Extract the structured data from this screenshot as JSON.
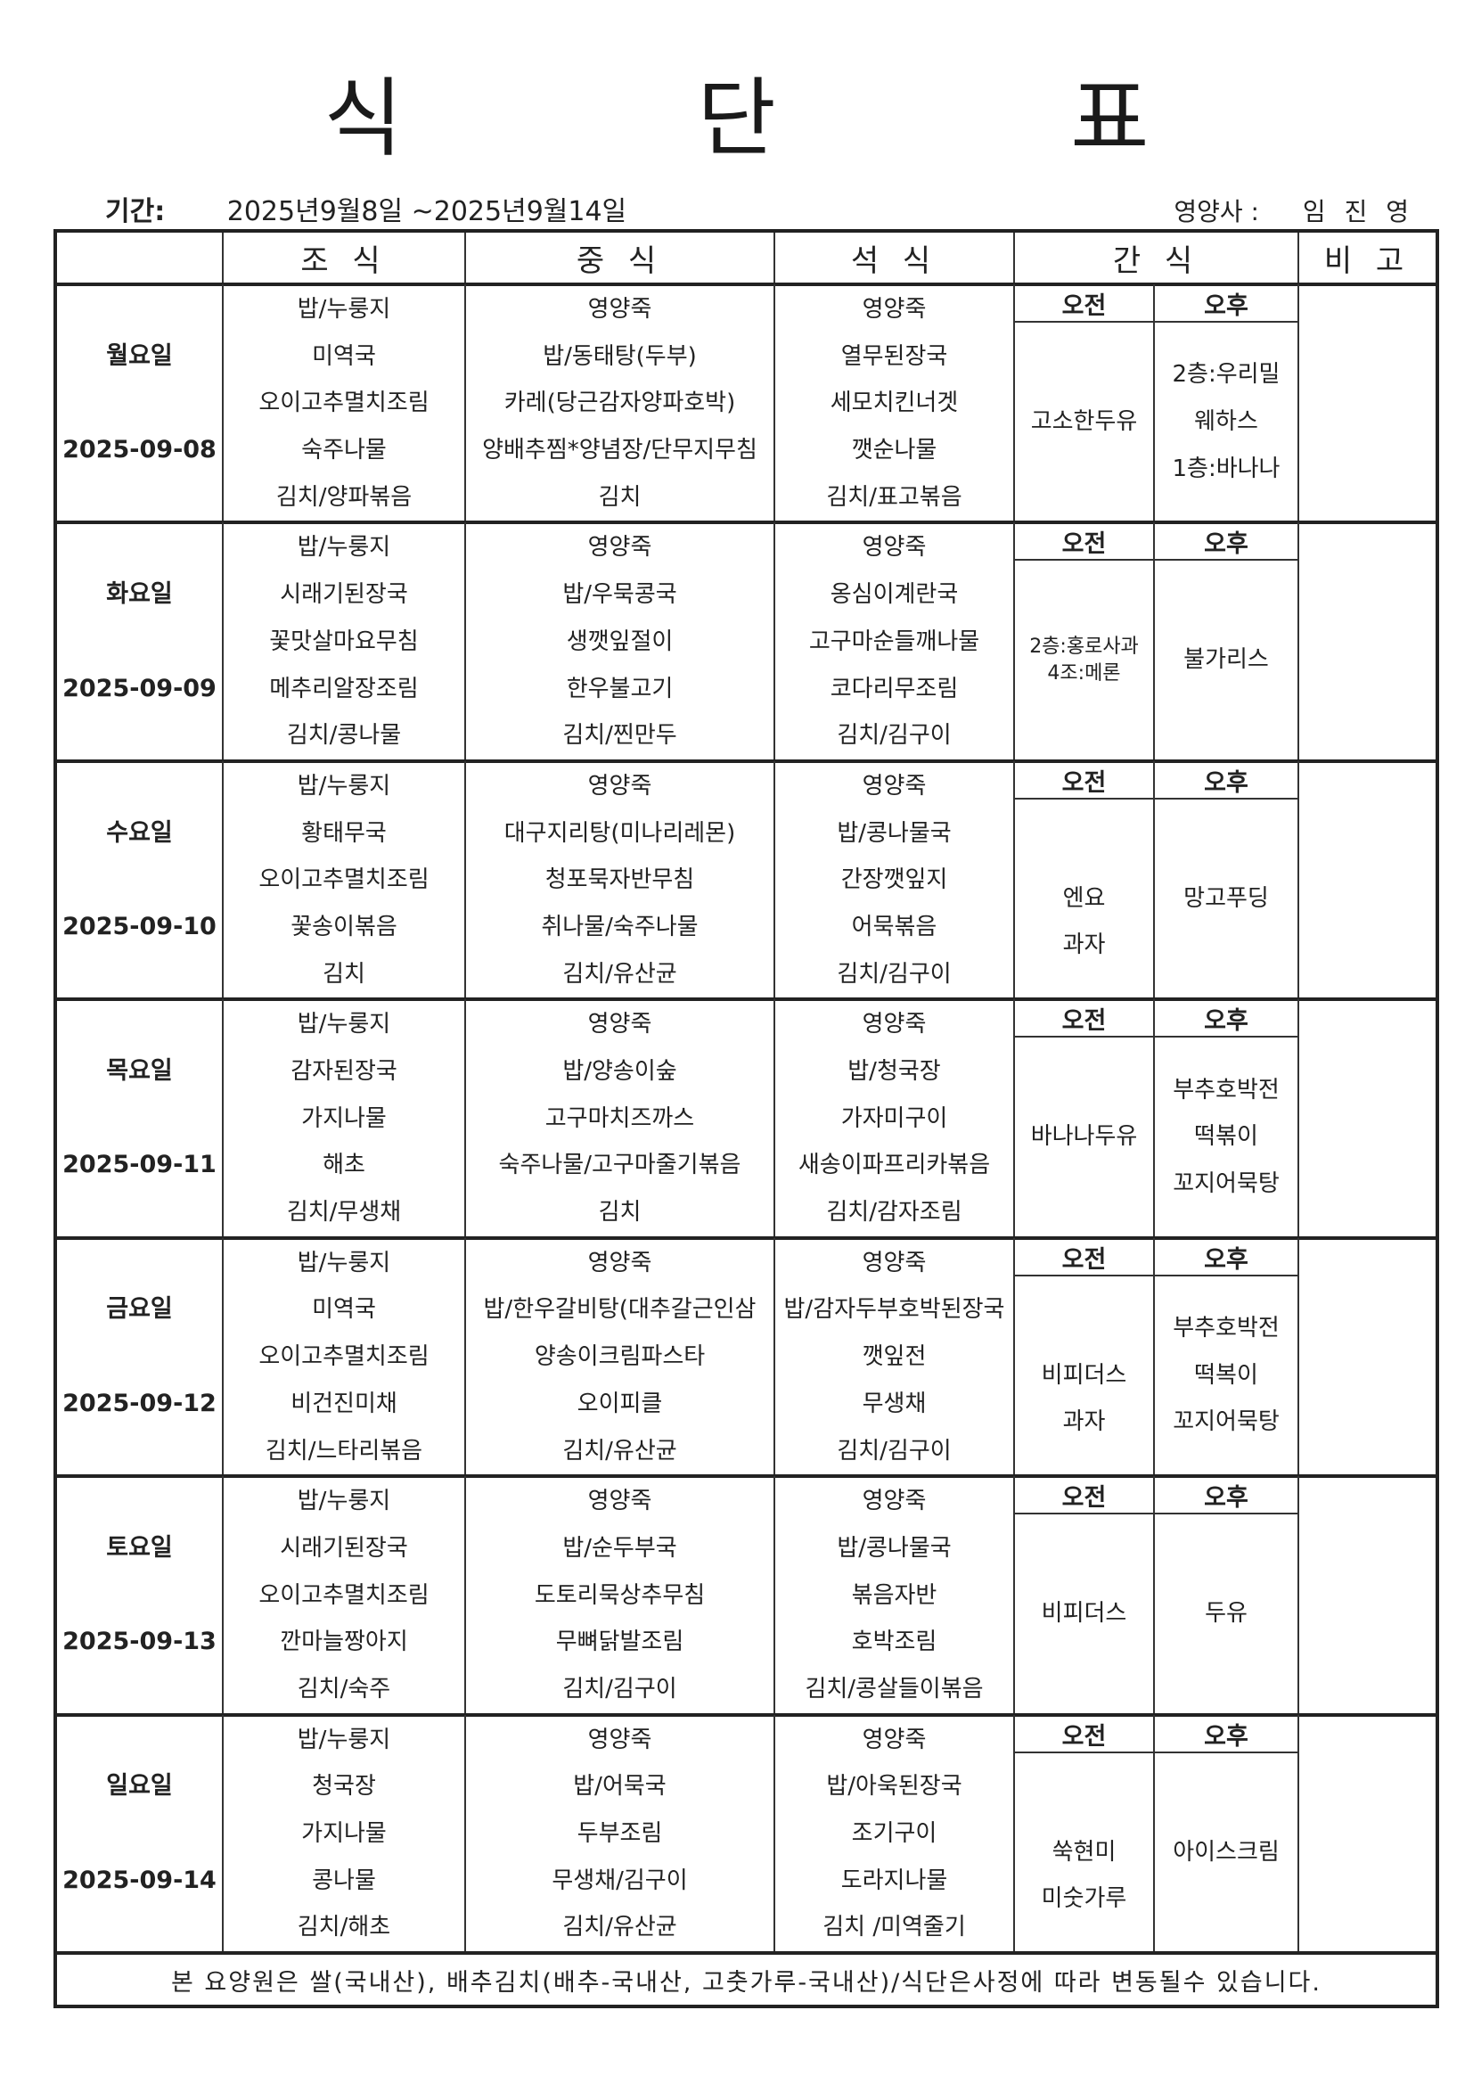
{
  "title": "식 단 표",
  "period": {
    "label": "기간:",
    "value": "2025년9월8일 ~2025년9월14일"
  },
  "dietitian": {
    "label": "영양사 :",
    "name": "임 진 영"
  },
  "headers": {
    "breakfast": "조 식",
    "lunch": "중 식",
    "dinner": "석 식",
    "snack": "간 식",
    "remarks": "비 고"
  },
  "snack_labels": {
    "am": "오전",
    "pm": "오후"
  },
  "days": [
    {
      "name": "월요일",
      "date": "2025-09-08",
      "breakfast": [
        "밥/누룽지",
        "미역국",
        "오이고추멸치조림",
        "숙주나물",
        "김치/양파볶음"
      ],
      "lunch": [
        "영양죽",
        "밥/동태탕(두부)",
        "카레(당근감자양파호박)",
        "양배추찜*양념장/단무지무침",
        "김치"
      ],
      "dinner": [
        "영양죽",
        "열무된장국",
        "세모치킨너겟",
        "깻순나물",
        "김치/표고볶음"
      ],
      "snack_am": [
        "",
        "고소한두유",
        ""
      ],
      "snack_pm": [
        "2층:우리밀",
        "웨하스",
        "1층:바나나"
      ],
      "remarks": ""
    },
    {
      "name": "화요일",
      "date": "2025-09-09",
      "breakfast": [
        "밥/누룽지",
        "시래기된장국",
        "꽃맛살마요무침",
        "메추리알장조림",
        "김치/콩나물"
      ],
      "lunch": [
        "영양죽",
        "밥/우묵콩국",
        "생깻잎절이",
        "한우불고기",
        "김치/찐만두"
      ],
      "dinner": [
        "영양죽",
        "옹심이계란국",
        "고구마순들깨나물",
        "코다리무조림",
        "김치/김구이"
      ],
      "snack_am": [
        "2층:홍로사과",
        "4조:메론"
      ],
      "snack_pm": [
        "",
        "불가리스",
        ""
      ],
      "remarks": ""
    },
    {
      "name": "수요일",
      "date": "2025-09-10",
      "breakfast": [
        "밥/누룽지",
        "황태무국",
        "오이고추멸치조림",
        "꽃송이볶음",
        "김치"
      ],
      "lunch": [
        "영양죽",
        "대구지리탕(미나리레몬)",
        "청포묵자반무침",
        "취나물/숙주나물",
        "김치/유산균"
      ],
      "dinner": [
        "영양죽",
        "밥/콩나물국",
        "간장깻잎지",
        "어묵볶음",
        "김치/김구이"
      ],
      "snack_am": [
        "",
        "엔요",
        "과자"
      ],
      "snack_pm": [
        "",
        "망고푸딩",
        ""
      ],
      "remarks": ""
    },
    {
      "name": "목요일",
      "date": "2025-09-11",
      "breakfast": [
        "밥/누룽지",
        "감자된장국",
        "가지나물",
        "해초",
        "김치/무생채"
      ],
      "lunch": [
        "영양죽",
        "밥/양송이숲",
        "고구마치즈까스",
        "숙주나물/고구마줄기볶음",
        "김치"
      ],
      "dinner": [
        "영양죽",
        "밥/청국장",
        "가자미구이",
        "새송이파프리카볶음",
        "김치/감자조림"
      ],
      "snack_am": [
        "",
        "바나나두유",
        ""
      ],
      "snack_pm": [
        "부추호박전",
        "떡볶이",
        "꼬지어묵탕"
      ],
      "remarks": ""
    },
    {
      "name": "금요일",
      "date": "2025-09-12",
      "breakfast": [
        "밥/누룽지",
        "미역국",
        "오이고추멸치조림",
        "비건진미채",
        "김치/느타리볶음"
      ],
      "lunch": [
        "영양죽",
        "밥/한우갈비탕(대추갈근인삼",
        "양송이크림파스타",
        "오이피클",
        "김치/유산균"
      ],
      "dinner": [
        "영양죽",
        "밥/감자두부호박된장국",
        "깻잎전",
        "무생채",
        "김치/김구이"
      ],
      "snack_am": [
        "",
        "비피더스",
        "과자"
      ],
      "snack_pm": [
        "부추호박전",
        "떡복이",
        "꼬지어묵탕"
      ],
      "remarks": ""
    },
    {
      "name": "토요일",
      "date": "2025-09-13",
      "breakfast": [
        "밥/누룽지",
        "시래기된장국",
        "오이고추멸치조림",
        "깐마늘짱아지",
        "김치/숙주"
      ],
      "lunch": [
        "영양죽",
        "밥/순두부국",
        "도토리묵상추무침",
        "무뼈닭발조림",
        "김치/김구이"
      ],
      "dinner": [
        "영양죽",
        "밥/콩나물국",
        "볶음자반",
        "호박조림",
        "김치/콩살들이볶음"
      ],
      "snack_am": [
        "",
        "비피더스",
        ""
      ],
      "snack_pm": [
        "",
        "두유",
        ""
      ],
      "remarks": ""
    },
    {
      "name": "일요일",
      "date": "2025-09-14",
      "breakfast": [
        "밥/누룽지",
        "청국장",
        "가지나물",
        "콩나물",
        "김치/해초"
      ],
      "lunch": [
        "영양죽",
        "밥/어묵국",
        "두부조림",
        "무생채/김구이",
        "김치/유산균"
      ],
      "dinner": [
        "영양죽",
        "밥/아욱된장국",
        "조기구이",
        "도라지나물",
        "김치 /미역줄기"
      ],
      "snack_am": [
        "",
        "쑥현미",
        "미숫가루"
      ],
      "snack_pm": [
        "",
        "아이스크림",
        ""
      ],
      "remarks": ""
    }
  ],
  "footer": "본 요양원은 쌀(국내산), 배추김치(배추-국내산, 고춧가루-국내산)/식단은사정에 따라 변동될수 있습니다."
}
